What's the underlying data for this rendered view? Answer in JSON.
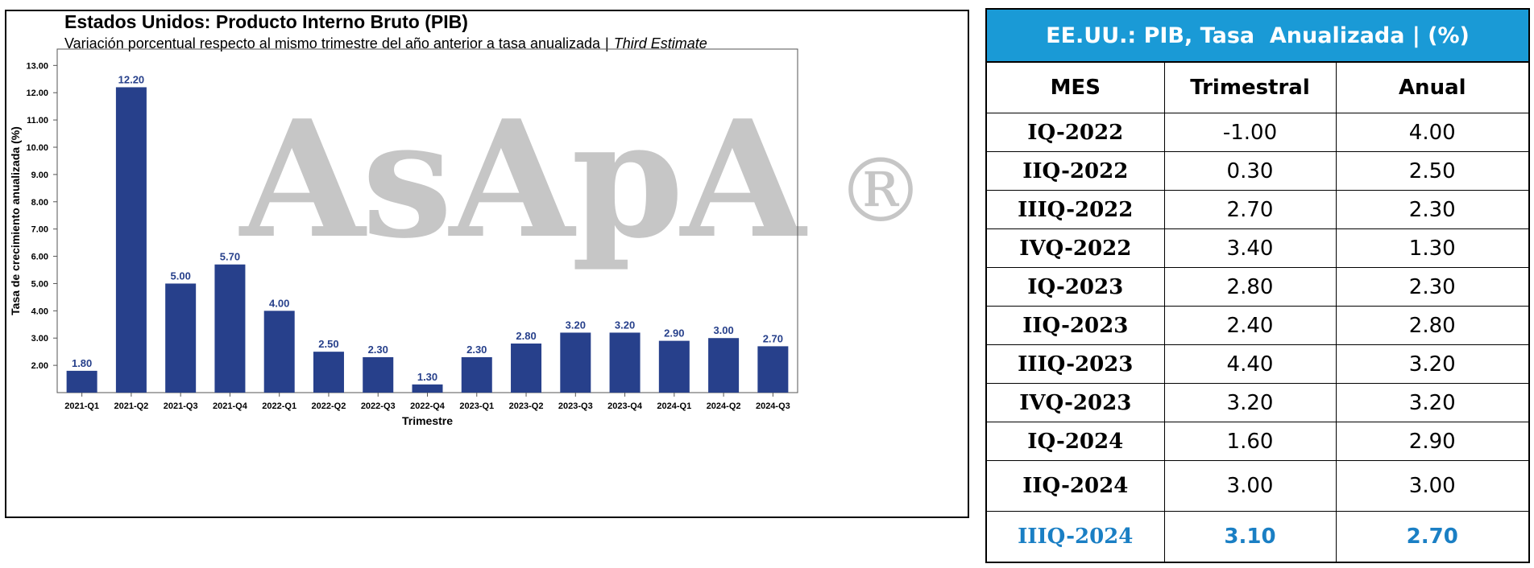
{
  "chart_data": {
    "type": "bar",
    "title": "Estados Unidos: Producto Interno Bruto (PIB)",
    "subtitle": "Variación porcentual respecto al mismo trimestre del año anterior a tasa anualizada",
    "subtitle_note": "Third Estimate",
    "subtitle_sep": "|",
    "xlabel": "Trimestre",
    "ylabel": "Tasa de crecimiento anualizada (%)",
    "categories": [
      "2021-Q1",
      "2021-Q2",
      "2021-Q3",
      "2021-Q4",
      "2022-Q1",
      "2022-Q2",
      "2022-Q3",
      "2022-Q4",
      "2023-Q1",
      "2023-Q2",
      "2023-Q3",
      "2023-Q4",
      "2024-Q1",
      "2024-Q2",
      "2024-Q3"
    ],
    "values": [
      1.8,
      12.2,
      5.0,
      5.7,
      4.0,
      2.5,
      2.3,
      1.3,
      2.3,
      2.8,
      3.2,
      3.2,
      2.9,
      3.0,
      2.7
    ],
    "value_labels": [
      "1.80",
      "12.20",
      "5.00",
      "5.70",
      "4.00",
      "2.50",
      "2.30",
      "1.30",
      "2.30",
      "2.80",
      "3.20",
      "3.20",
      "2.90",
      "3.00",
      "2.70"
    ],
    "yticks": [
      "2.00",
      "3.00",
      "4.00",
      "5.00",
      "6.00",
      "7.00",
      "8.00",
      "9.00",
      "10.00",
      "11.00",
      "12.00",
      "13.00"
    ],
    "ylim": [
      1.0,
      13.6
    ],
    "grid": false,
    "bar_color": "#27408b",
    "label_color": "#27408b",
    "watermark": "AsApA",
    "watermark_mark": "®"
  },
  "table": {
    "title": "EE.UU.: PIB, Tasa  Anualizada | (%)",
    "header_color": "#1a9ad6",
    "highlight_color": "#1a7fc4",
    "columns": [
      "MES",
      "Trimestral",
      "Anual"
    ],
    "rows": [
      {
        "period": "IQ-2022",
        "quarterly": "-1.00",
        "annual": "4.00"
      },
      {
        "period": "IIQ-2022",
        "quarterly": "0.30",
        "annual": "2.50"
      },
      {
        "period": "IIIQ-2022",
        "quarterly": "2.70",
        "annual": "2.30"
      },
      {
        "period": "IVQ-2022",
        "quarterly": "3.40",
        "annual": "1.30"
      },
      {
        "period": "IQ-2023",
        "quarterly": "2.80",
        "annual": "2.30"
      },
      {
        "period": "IIQ-2023",
        "quarterly": "2.40",
        "annual": "2.80"
      },
      {
        "period": "IIIQ-2023",
        "quarterly": "4.40",
        "annual": "3.20"
      },
      {
        "period": "IVQ-2023",
        "quarterly": "3.20",
        "annual": "3.20"
      },
      {
        "period": "IQ-2024",
        "quarterly": "1.60",
        "annual": "2.90"
      },
      {
        "period": "IIQ-2024",
        "quarterly": "3.00",
        "annual": "3.00"
      },
      {
        "period": "IIIQ-2024",
        "quarterly": "3.10",
        "annual": "2.70"
      }
    ]
  }
}
